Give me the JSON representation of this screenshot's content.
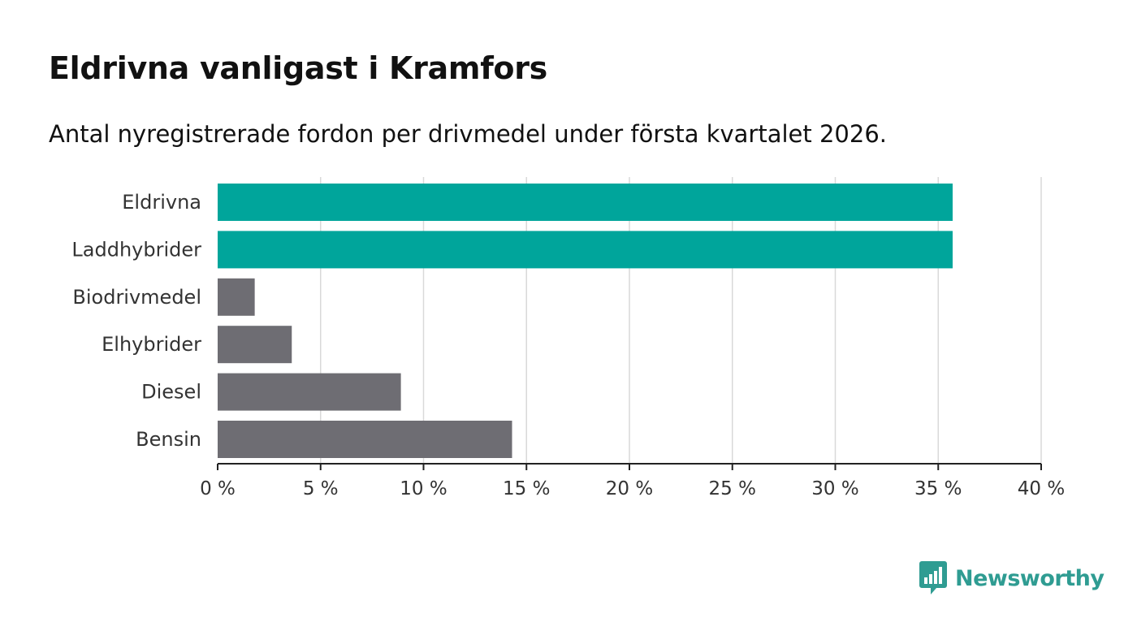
{
  "title": "Eldrivna vanligast i Kramfors",
  "subtitle": "Antal nyregistrerade fordon per drivmedel under första kvartalet 2026.",
  "colors": {
    "highlight": "#00a59b",
    "default": "#6e6d73",
    "grid": "#d9d9d9",
    "axis": "#222222",
    "brand": "#2f9c92"
  },
  "brand": {
    "name": "Newsworthy",
    "icon": "newsworthy-logo-icon"
  },
  "chart_data": {
    "type": "bar",
    "orientation": "horizontal",
    "categories": [
      "Eldrivna",
      "Laddhybrider",
      "Biodrivmedel",
      "Elhybrider",
      "Diesel",
      "Bensin"
    ],
    "values": [
      35.7,
      35.7,
      1.8,
      3.6,
      8.9,
      14.3
    ],
    "highlighted": [
      true,
      true,
      false,
      false,
      false,
      false
    ],
    "xlim": [
      0,
      40
    ],
    "xticks": [
      0,
      5,
      10,
      15,
      20,
      25,
      30,
      35,
      40
    ],
    "xtick_labels": [
      "0 %",
      "5 %",
      "10 %",
      "15 %",
      "20 %",
      "25 %",
      "30 %",
      "35 %",
      "40 %"
    ],
    "grid": true,
    "title": "Eldrivna vanligast i Kramfors",
    "xlabel": "",
    "ylabel": ""
  }
}
